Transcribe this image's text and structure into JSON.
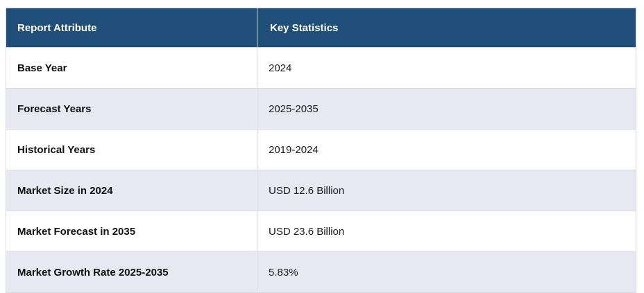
{
  "chart_data": {
    "type": "table",
    "columns": [
      "Report Attribute",
      "Key Statistics"
    ],
    "rows": [
      [
        "Base Year",
        "2024"
      ],
      [
        "Forecast Years",
        "2025-2035"
      ],
      [
        "Historical Years",
        "2019-2024"
      ],
      [
        "Market Size in 2024",
        "USD 12.6 Billion"
      ],
      [
        "Market Forecast in 2035",
        "USD 23.6 Billion"
      ],
      [
        "Market Growth Rate 2025-2035",
        "5.83%"
      ]
    ]
  },
  "table": {
    "header": {
      "attribute": "Report Attribute",
      "statistics": "Key Statistics"
    },
    "rows": [
      {
        "attribute": "Base Year",
        "value": "2024"
      },
      {
        "attribute": "Forecast Years",
        "value": "2025-2035"
      },
      {
        "attribute": "Historical Years",
        "value": "2019-2024"
      },
      {
        "attribute": "Market Size in 2024",
        "value": "USD 12.6 Billion"
      },
      {
        "attribute": "Market Forecast in 2035",
        "value": "USD 23.6 Billion"
      },
      {
        "attribute": "Market Growth Rate 2025-2035",
        "value": "5.83%"
      }
    ],
    "colors": {
      "header_bg": "#1f4e79",
      "header_text": "#ffffff",
      "row_bg": "#ffffff",
      "row_alt_bg": "#e7e8f2",
      "border": "#d8d9e2"
    }
  }
}
